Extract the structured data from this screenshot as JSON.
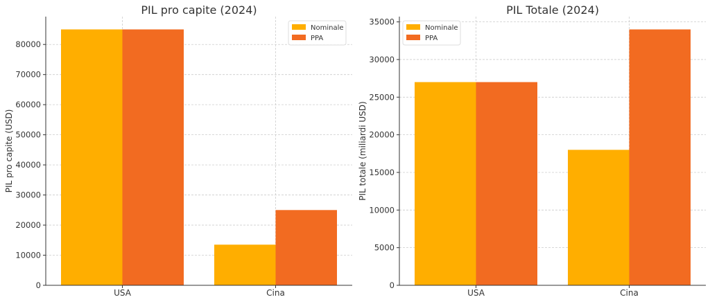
{
  "colors": {
    "nominale": "#FFAE00",
    "ppa": "#F26B21",
    "grid": "#cccccc",
    "axis": "#333333",
    "text": "#333333"
  },
  "chart_data": [
    {
      "type": "bar",
      "title": "PIL pro capite (2024)",
      "xlabel": "",
      "ylabel": "PIL pro capite (USD)",
      "categories": [
        "USA",
        "Cina"
      ],
      "series": [
        {
          "name": "Nominale",
          "values": [
            85000,
            13500
          ]
        },
        {
          "name": "PPA",
          "values": [
            85000,
            25000
          ]
        }
      ],
      "ylim": [
        0,
        89250
      ],
      "yticks": [
        0,
        10000,
        20000,
        30000,
        40000,
        50000,
        60000,
        70000,
        80000
      ],
      "grid": true,
      "legend": "top-right"
    },
    {
      "type": "bar",
      "title": "PIL Totale (2024)",
      "xlabel": "",
      "ylabel": "PIL totale (miliardi USD)",
      "categories": [
        "USA",
        "Cina"
      ],
      "series": [
        {
          "name": "Nominale",
          "values": [
            27000,
            18000
          ]
        },
        {
          "name": "PPA",
          "values": [
            27000,
            34000
          ]
        }
      ],
      "ylim": [
        0,
        35700
      ],
      "yticks": [
        0,
        5000,
        10000,
        15000,
        20000,
        25000,
        30000,
        35000
      ],
      "grid": true,
      "legend": "top-left"
    }
  ]
}
